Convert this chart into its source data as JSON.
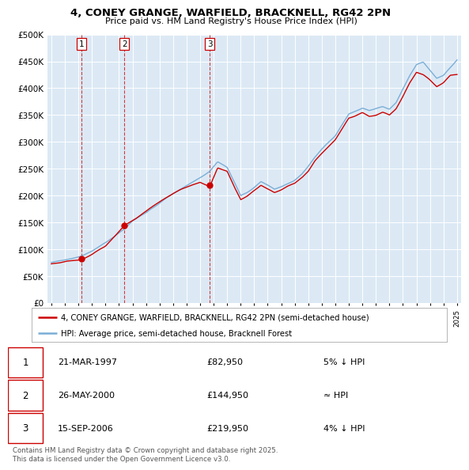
{
  "title": "4, CONEY GRANGE, WARFIELD, BRACKNELL, RG42 2PN",
  "subtitle": "Price paid vs. HM Land Registry's House Price Index (HPI)",
  "ylabel_ticks": [
    "£0",
    "£50K",
    "£100K",
    "£150K",
    "£200K",
    "£250K",
    "£300K",
    "£350K",
    "£400K",
    "£450K",
    "£500K"
  ],
  "ytick_values": [
    0,
    50000,
    100000,
    150000,
    200000,
    250000,
    300000,
    350000,
    400000,
    450000,
    500000
  ],
  "ylim": [
    0,
    500000
  ],
  "xlim_start": 1994.7,
  "xlim_end": 2025.3,
  "background_color": "#dce9f5",
  "sale_dates": [
    1997.22,
    2000.4,
    2006.71
  ],
  "sale_prices": [
    82950,
    144950,
    219950
  ],
  "sale_labels": [
    "1",
    "2",
    "3"
  ],
  "legend_line1": "4, CONEY GRANGE, WARFIELD, BRACKNELL, RG42 2PN (semi-detached house)",
  "legend_line2": "HPI: Average price, semi-detached house, Bracknell Forest",
  "table_rows": [
    [
      "1",
      "21-MAR-1997",
      "£82,950",
      "5% ↓ HPI"
    ],
    [
      "2",
      "26-MAY-2000",
      "£144,950",
      "≈ HPI"
    ],
    [
      "3",
      "15-SEP-2006",
      "£219,950",
      "4% ↓ HPI"
    ]
  ],
  "footer": "Contains HM Land Registry data © Crown copyright and database right 2025.\nThis data is licensed under the Open Government Licence v3.0.",
  "red_color": "#cc0000",
  "blue_color": "#7aaed6"
}
